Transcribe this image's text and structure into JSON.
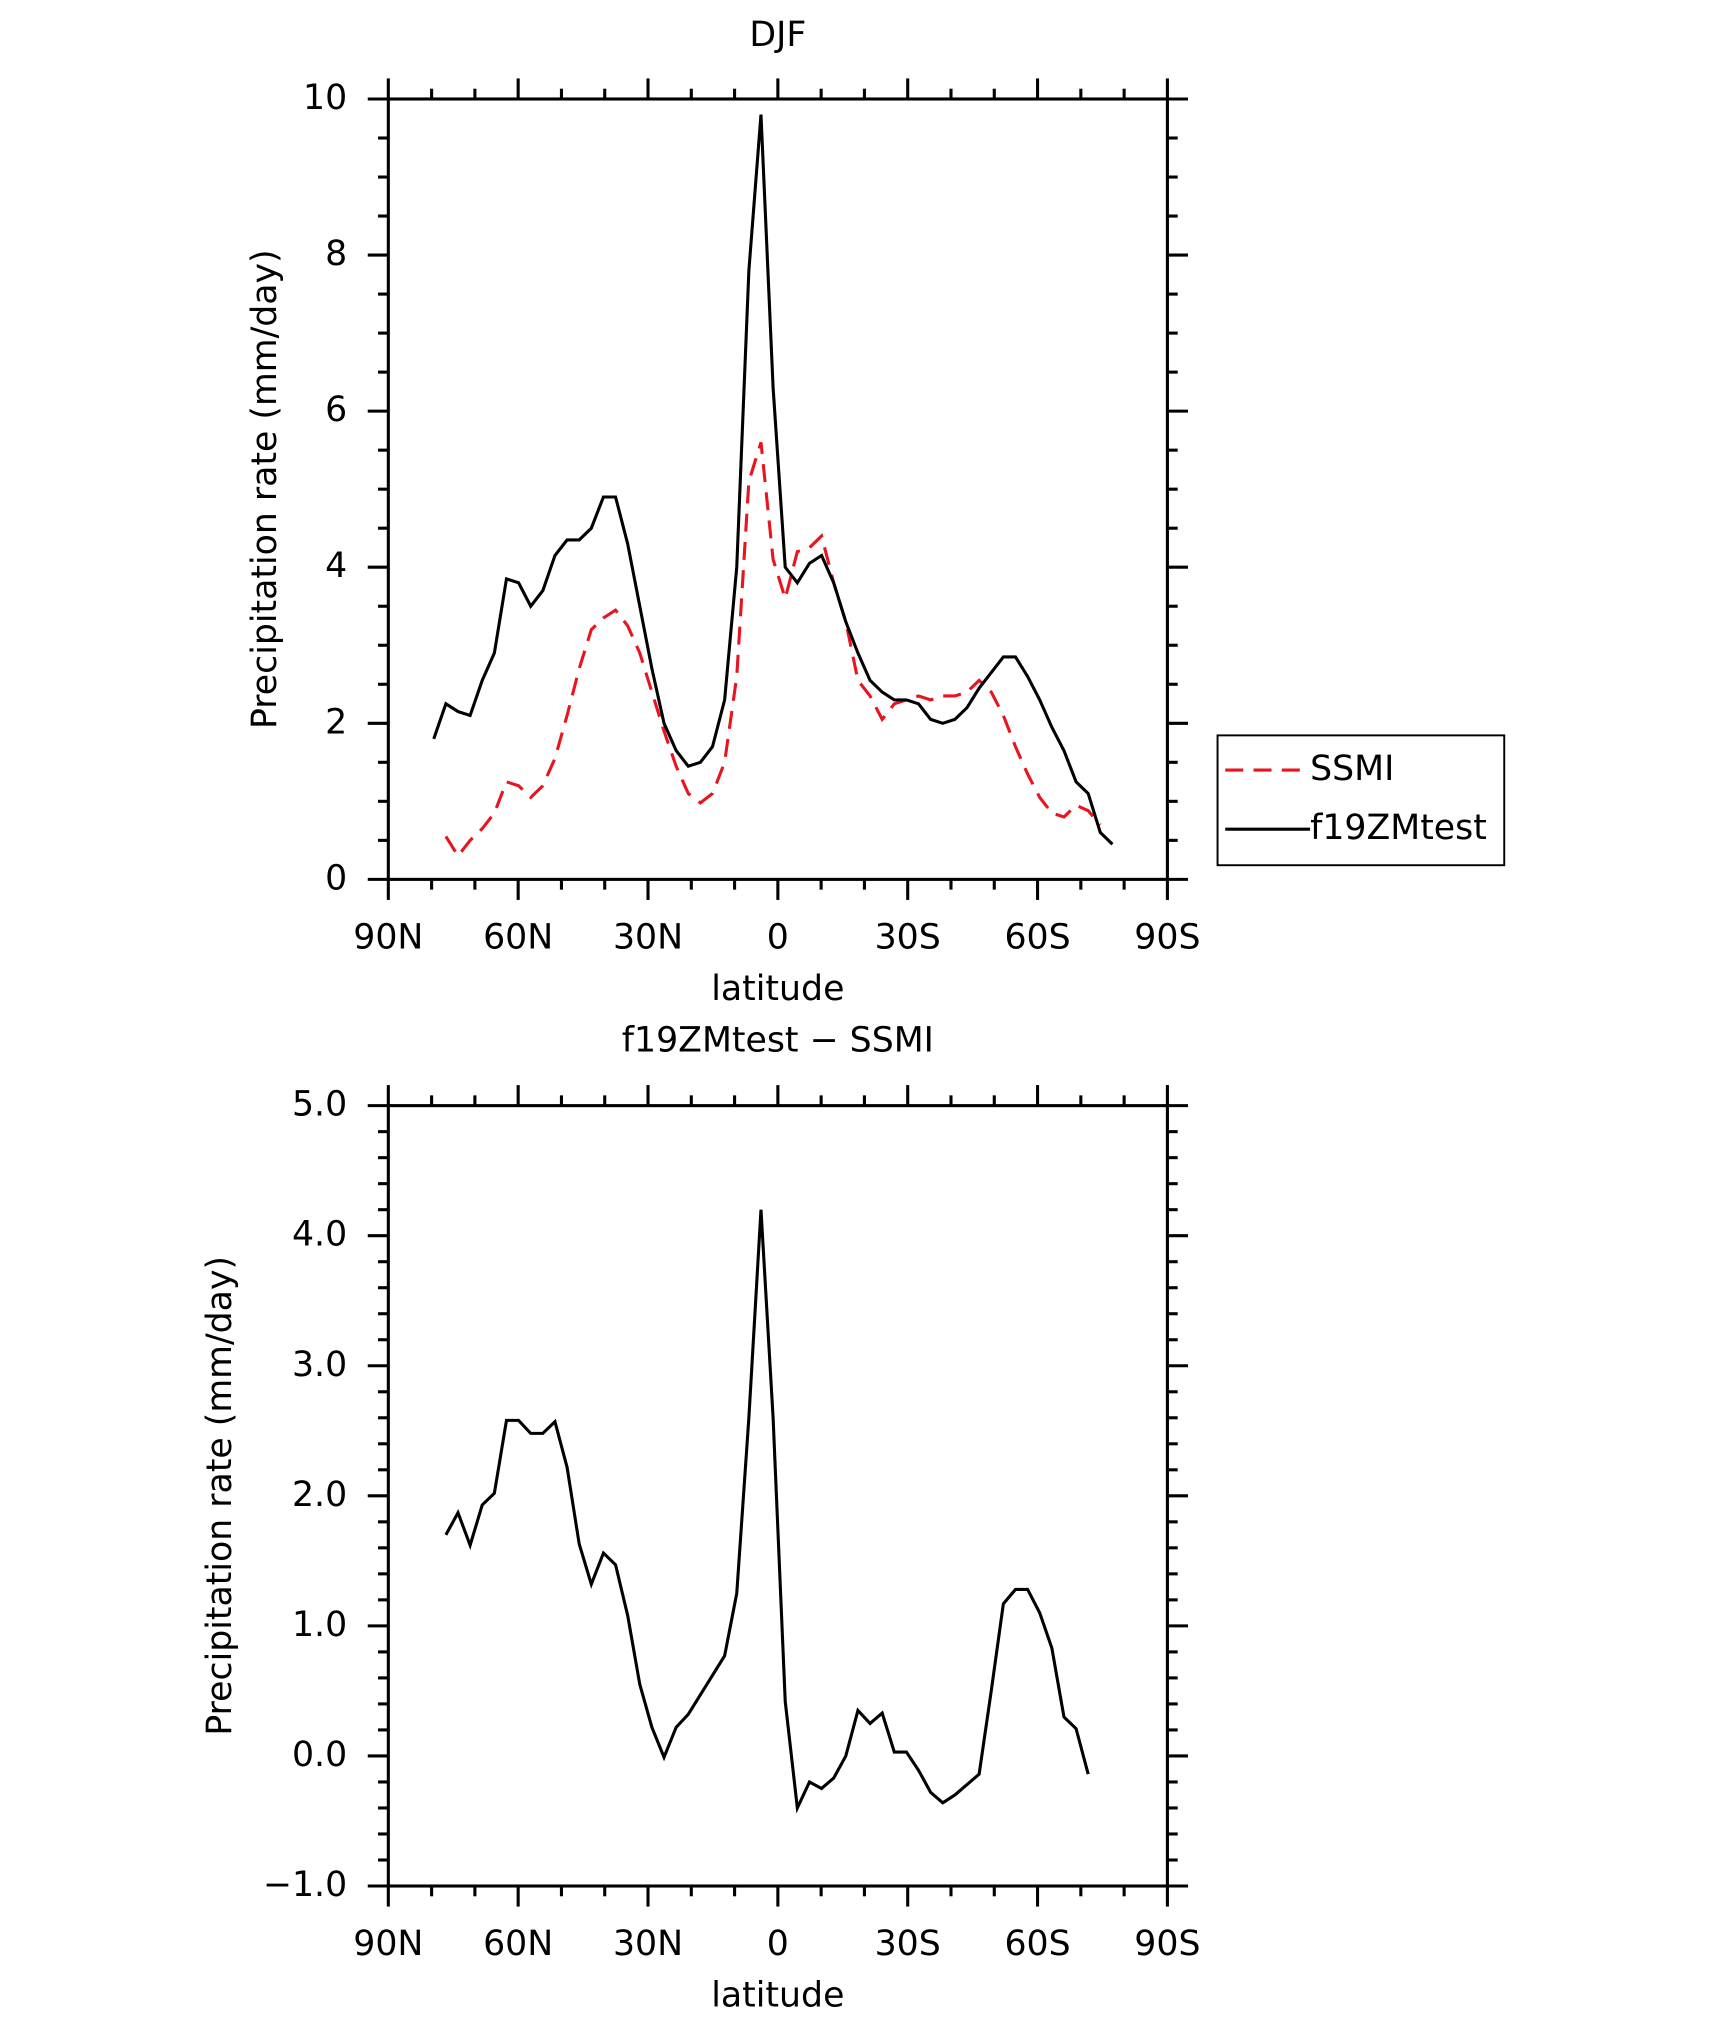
{
  "chart_data": [
    {
      "type": "line",
      "title": "DJF",
      "xlabel": "latitude",
      "ylabel": "Precipitation rate (mm/day)",
      "xlim": [
        90,
        -90
      ],
      "xticks": [
        {
          "value": 90,
          "label": "90N"
        },
        {
          "value": 60,
          "label": "60N"
        },
        {
          "value": 30,
          "label": "30N"
        },
        0,
        {
          "value": -30,
          "label": "30S"
        },
        {
          "value": -60,
          "label": "60S"
        },
        {
          "value": -90,
          "label": "90S"
        }
      ],
      "ylim": [
        0,
        10
      ],
      "yticks": [
        0,
        2,
        4,
        6,
        8,
        10
      ],
      "legend": "right",
      "x": [
        79.5,
        76.7,
        73.9,
        71.1,
        68.3,
        65.5,
        62.7,
        59.9,
        57.1,
        54.3,
        51.5,
        48.7,
        45.9,
        43.1,
        40.3,
        37.5,
        34.7,
        31.9,
        29.1,
        26.3,
        23.5,
        20.7,
        17.9,
        15.1,
        12.3,
        9.5,
        6.7,
        3.9,
        1.1,
        -1.7,
        -4.5,
        -7.3,
        -10.1,
        -12.9,
        -15.7,
        -18.5,
        -21.3,
        -24.1,
        -26.9,
        -29.7,
        -32.5,
        -35.3,
        -38.1,
        -40.9,
        -43.7,
        -46.5,
        -49.3,
        -52.1,
        -54.9,
        -57.7,
        -60.5,
        -63.3,
        -66.1,
        -68.9,
        -71.7,
        -74.5,
        -77.3
      ],
      "series": [
        {
          "name": "SSMI",
          "color": "#e8141e",
          "dashed": true,
          "values": [
            null,
            0.55,
            0.3,
            0.5,
            0.65,
            0.85,
            1.25,
            1.2,
            1.05,
            1.2,
            1.55,
            2.1,
            2.7,
            3.2,
            3.35,
            3.45,
            3.25,
            2.9,
            2.4,
            1.9,
            1.45,
            1.1,
            0.98,
            1.1,
            1.5,
            2.6,
            5.1,
            5.6,
            4.1,
            3.6,
            4.2,
            4.25,
            4.4,
            3.8,
            3.3,
            2.55,
            2.35,
            2.05,
            2.25,
            2.3,
            2.35,
            2.3,
            2.35,
            2.35,
            2.4,
            2.55,
            2.4,
            2.1,
            1.7,
            1.35,
            1.05,
            0.85,
            0.8,
            0.95,
            0.88,
            0.7,
            null
          ]
        },
        {
          "name": "f19ZMtest",
          "color": "#000000",
          "dashed": false,
          "values": [
            1.8,
            2.25,
            2.15,
            2.1,
            2.55,
            2.9,
            3.85,
            3.8,
            3.5,
            3.7,
            4.15,
            4.35,
            4.35,
            4.5,
            4.9,
            4.9,
            4.3,
            3.5,
            2.7,
            2.0,
            1.65,
            1.45,
            1.5,
            1.7,
            2.3,
            4.0,
            7.8,
            9.8,
            6.3,
            4.0,
            3.8,
            4.05,
            4.15,
            3.8,
            3.3,
            2.9,
            2.55,
            2.4,
            2.3,
            2.3,
            2.25,
            2.05,
            2.0,
            2.05,
            2.2,
            2.45,
            2.65,
            2.85,
            2.85,
            2.6,
            2.3,
            1.95,
            1.65,
            1.25,
            1.1,
            0.6,
            0.45
          ]
        }
      ]
    },
    {
      "type": "line",
      "title": "f19ZMtest − SSMI",
      "xlabel": "latitude",
      "ylabel": "Precipitation rate (mm/day)",
      "xlim": [
        90,
        -90
      ],
      "xticks": [
        {
          "value": 90,
          "label": "90N"
        },
        {
          "value": 60,
          "label": "60N"
        },
        {
          "value": 30,
          "label": "30N"
        },
        0,
        {
          "value": -30,
          "label": "30S"
        },
        {
          "value": -60,
          "label": "60S"
        },
        {
          "value": -90,
          "label": "90S"
        }
      ],
      "ylim": [
        -1,
        5
      ],
      "yticks": [
        {
          "value": -1,
          "label": "−1.0"
        },
        {
          "value": 0,
          "label": "0.0"
        },
        {
          "value": 1,
          "label": "1.0"
        },
        {
          "value": 2,
          "label": "2.0"
        },
        {
          "value": 3,
          "label": "3.0"
        },
        {
          "value": 4,
          "label": "4.0"
        },
        {
          "value": 5,
          "label": "5.0"
        }
      ],
      "x": [
        79.5,
        76.7,
        73.9,
        71.1,
        68.3,
        65.5,
        62.7,
        59.9,
        57.1,
        54.3,
        51.5,
        48.7,
        45.9,
        43.1,
        40.3,
        37.5,
        34.7,
        31.9,
        29.1,
        26.3,
        23.5,
        20.7,
        17.9,
        15.1,
        12.3,
        9.5,
        6.7,
        3.9,
        1.1,
        -1.7,
        -4.5,
        -7.3,
        -10.1,
        -12.9,
        -15.7,
        -18.5,
        -21.3,
        -24.1,
        -26.9,
        -29.7,
        -32.5,
        -35.3,
        -38.1,
        -40.9,
        -43.7,
        -46.5,
        -49.3,
        -52.1,
        -54.9,
        -57.7,
        -60.5,
        -63.3,
        -66.1,
        -68.9,
        -71.7,
        -74.5,
        -77.3
      ],
      "series": [
        {
          "color": "#000000",
          "dashed": false,
          "values": [
            null,
            1.7,
            1.87,
            1.62,
            1.93,
            2.02,
            2.58,
            2.58,
            2.48,
            2.48,
            2.57,
            2.22,
            1.63,
            1.32,
            1.56,
            1.47,
            1.08,
            0.55,
            0.22,
            -0.01,
            0.22,
            0.32,
            0.47,
            0.62,
            0.77,
            1.25,
            2.6,
            4.2,
            2.6,
            0.42,
            -0.4,
            -0.2,
            -0.25,
            -0.17,
            0.0,
            0.35,
            0.25,
            0.33,
            0.03,
            0.03,
            -0.11,
            -0.28,
            -0.36,
            -0.3,
            -0.22,
            -0.14,
            0.5,
            1.17,
            1.28,
            1.28,
            1.1,
            0.83,
            0.3,
            0.21,
            -0.14,
            null,
            null
          ]
        }
      ]
    }
  ]
}
